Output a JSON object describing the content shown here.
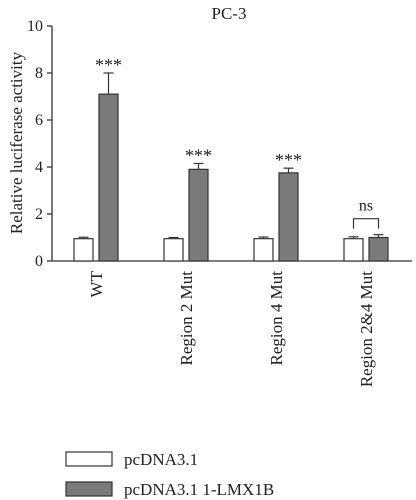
{
  "chart_data": {
    "type": "bar",
    "title": "PC-3",
    "xlabel": "",
    "ylabel": "Relative luciferase activity",
    "ylim": [
      0,
      10
    ],
    "yticks": [
      0,
      2,
      4,
      6,
      8,
      10
    ],
    "categories": [
      "WT",
      "Region 2 Mut",
      "Region 4 Mut",
      "Region 2&4 Mut"
    ],
    "series": [
      {
        "name": "pcDNA3.1",
        "color": "#ffffff",
        "values": [
          0.95,
          0.95,
          0.95,
          0.95
        ],
        "errors": [
          0.06,
          0.05,
          0.07,
          0.08
        ]
      },
      {
        "name": "pcDNA3.1 1-LMX1B",
        "color": "#7a7a7a",
        "values": [
          7.1,
          3.9,
          3.75,
          1.0
        ],
        "errors": [
          0.9,
          0.25,
          0.2,
          0.12
        ]
      }
    ],
    "annotations": [
      "***",
      "***",
      "***",
      "ns"
    ],
    "legend_position": "bottom-left",
    "grid": false
  }
}
